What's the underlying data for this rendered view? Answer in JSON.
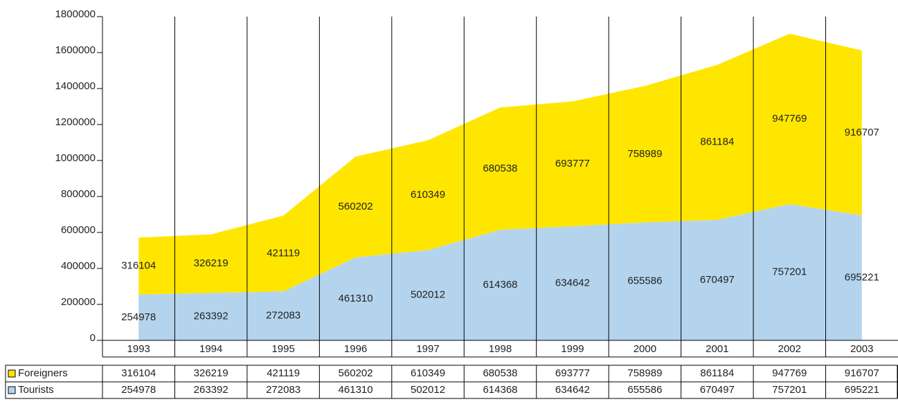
{
  "chart_data": {
    "type": "stacked_area",
    "categories": [
      "1993",
      "1994",
      "1995",
      "1996",
      "1997",
      "1998",
      "1999",
      "2000",
      "2001",
      "2002",
      "2003"
    ],
    "series": [
      {
        "name": "Foreigners",
        "color": "#ffe600",
        "values": [
          316104,
          326219,
          421119,
          560202,
          610349,
          680538,
          693777,
          758989,
          861184,
          947769,
          916707
        ]
      },
      {
        "name": "Tourists",
        "color": "#b4d4ee",
        "values": [
          254978,
          263392,
          272083,
          461310,
          502012,
          614368,
          634642,
          655586,
          670497,
          757201,
          695221
        ]
      }
    ],
    "ylim": [
      0,
      1800000
    ],
    "yticks": [
      0,
      200000,
      400000,
      600000,
      800000,
      1000000,
      1200000,
      1400000,
      1600000,
      1800000
    ],
    "grid": false
  }
}
